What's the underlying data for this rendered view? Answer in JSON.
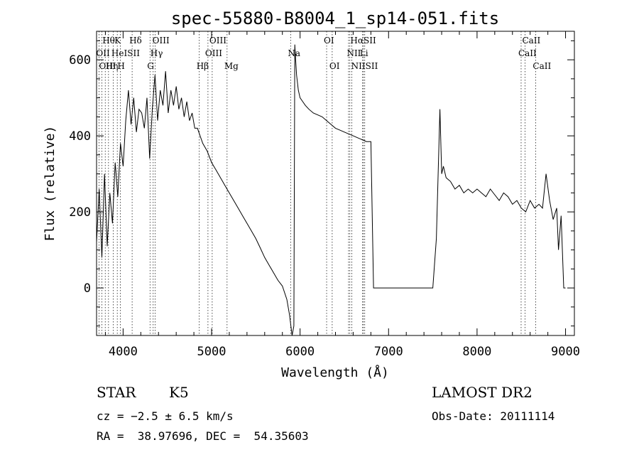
{
  "chart_data": {
    "type": "line",
    "title": "spec-55880-B8004_1_sp14-051.fits",
    "xlabel": "Wavelength (Å)",
    "ylabel": "Flux (relative)",
    "xlim": [
      3700,
      9100
    ],
    "ylim": [
      -125,
      675
    ],
    "x_ticks": [
      4000,
      5000,
      6000,
      7000,
      8000,
      9000
    ],
    "y_ticks": [
      0,
      200,
      400,
      600
    ],
    "grid": false,
    "series": [
      {
        "x": [
          3700,
          3730,
          3760,
          3790,
          3820,
          3850,
          3880,
          3910,
          3940,
          3970,
          4000,
          4030,
          4060,
          4090,
          4120,
          4150,
          4180,
          4210,
          4240,
          4270,
          4300,
          4330,
          4360,
          4390,
          4420,
          4450,
          4480,
          4510,
          4540,
          4570,
          4600,
          4630,
          4660,
          4690,
          4720,
          4750,
          4780,
          4810,
          4840,
          4870,
          4900,
          4950,
          5000,
          5050,
          5100,
          5150,
          5200,
          5250,
          5300,
          5350,
          5400,
          5450,
          5500,
          5550,
          5600,
          5650,
          5700,
          5750,
          5800,
          5850,
          5880,
          5910,
          5930,
          5940,
          5950,
          5960,
          5980,
          6000,
          6030,
          6060,
          6100,
          6150,
          6200,
          6250,
          6300,
          6350,
          6400,
          6450,
          6500,
          6550,
          6600,
          6650,
          6700,
          6750,
          6800,
          6830,
          6850,
          7000,
          7100,
          7200,
          7300,
          7400,
          7500,
          7540,
          7560,
          7580,
          7600,
          7620,
          7650,
          7700,
          7750,
          7800,
          7850,
          7900,
          7950,
          8000,
          8050,
          8100,
          8150,
          8200,
          8250,
          8300,
          8350,
          8400,
          8450,
          8500,
          8550,
          8600,
          8650,
          8700,
          8740,
          8780,
          8820,
          8860,
          8900,
          8920,
          8950,
          8980,
          9000
        ],
        "values": [
          120,
          260,
          80,
          300,
          110,
          250,
          170,
          330,
          240,
          380,
          320,
          440,
          520,
          430,
          500,
          410,
          470,
          460,
          420,
          500,
          340,
          470,
          560,
          440,
          520,
          480,
          570,
          460,
          520,
          480,
          530,
          470,
          500,
          450,
          490,
          440,
          460,
          420,
          420,
          400,
          380,
          360,
          330,
          310,
          290,
          270,
          250,
          230,
          210,
          190,
          170,
          150,
          130,
          105,
          80,
          60,
          40,
          20,
          5,
          -30,
          -70,
          -125,
          -100,
          640,
          600,
          560,
          520,
          500,
          490,
          480,
          470,
          460,
          455,
          450,
          440,
          430,
          420,
          415,
          410,
          405,
          400,
          395,
          390,
          385,
          385,
          0,
          0,
          0,
          0,
          0,
          0,
          0,
          0,
          130,
          300,
          470,
          300,
          320,
          290,
          280,
          260,
          270,
          250,
          260,
          250,
          260,
          250,
          240,
          260,
          245,
          230,
          250,
          240,
          220,
          230,
          210,
          200,
          230,
          210,
          220,
          210,
          300,
          230,
          180,
          210,
          100,
          190,
          0,
          0
        ]
      }
    ],
    "line_labels": [
      {
        "text": "Hθ",
        "x": 3798,
        "row": 1
      },
      {
        "text": "K",
        "x": 3934,
        "row": 1
      },
      {
        "text": "Hδ",
        "x": 4102,
        "row": 1
      },
      {
        "text": "OIII",
        "x": 4363,
        "row": 1
      },
      {
        "text": "OIII",
        "x": 5007,
        "row": 1
      },
      {
        "text": "OI",
        "x": 6300,
        "row": 1
      },
      {
        "text": "HαSII",
        "x": 6600,
        "row": 1
      },
      {
        "text": "CaII",
        "x": 8542,
        "row": 1
      },
      {
        "text": "OII",
        "x": 3727,
        "row": 2
      },
      {
        "text": "HeISII",
        "x": 3900,
        "row": 2
      },
      {
        "text": "Hγ",
        "x": 4340,
        "row": 2
      },
      {
        "text": "OIII",
        "x": 4959,
        "row": 2
      },
      {
        "text": "Na",
        "x": 5893,
        "row": 2
      },
      {
        "text": "NII",
        "x": 6560,
        "row": 2
      },
      {
        "text": "Li",
        "x": 6707,
        "row": 2
      },
      {
        "text": "CaII",
        "x": 8498,
        "row": 2
      },
      {
        "text": "OIII",
        "x": 3760,
        "row": 3
      },
      {
        "text": "Hη",
        "x": 3835,
        "row": 3
      },
      {
        "text": "H",
        "x": 3968,
        "row": 3
      },
      {
        "text": "G",
        "x": 4304,
        "row": 3
      },
      {
        "text": "Hβ",
        "x": 4861,
        "row": 3
      },
      {
        "text": "Mg",
        "x": 5175,
        "row": 3
      },
      {
        "text": "OI",
        "x": 6363,
        "row": 3
      },
      {
        "text": "NIISII",
        "x": 6610,
        "row": 3
      },
      {
        "text": "CaII",
        "x": 8662,
        "row": 3
      }
    ],
    "line_marks": [
      3727,
      3760,
      3798,
      3835,
      3889,
      3934,
      3968,
      4102,
      4304,
      4340,
      4363,
      4861,
      4959,
      5007,
      5175,
      5893,
      6300,
      6363,
      6548,
      6563,
      6584,
      6707,
      6716,
      6731,
      8498,
      8542,
      8662
    ]
  },
  "info": {
    "class_text": "STAR",
    "subclass_text": "K5",
    "cz_text": "cz = −2.5 ± 6.5 km/s",
    "ra_dec_text": "RA =  38.97696, DEC =  54.35603",
    "survey_text": "LAMOST DR2",
    "obs_date_text": "Obs-Date: 20111114"
  }
}
